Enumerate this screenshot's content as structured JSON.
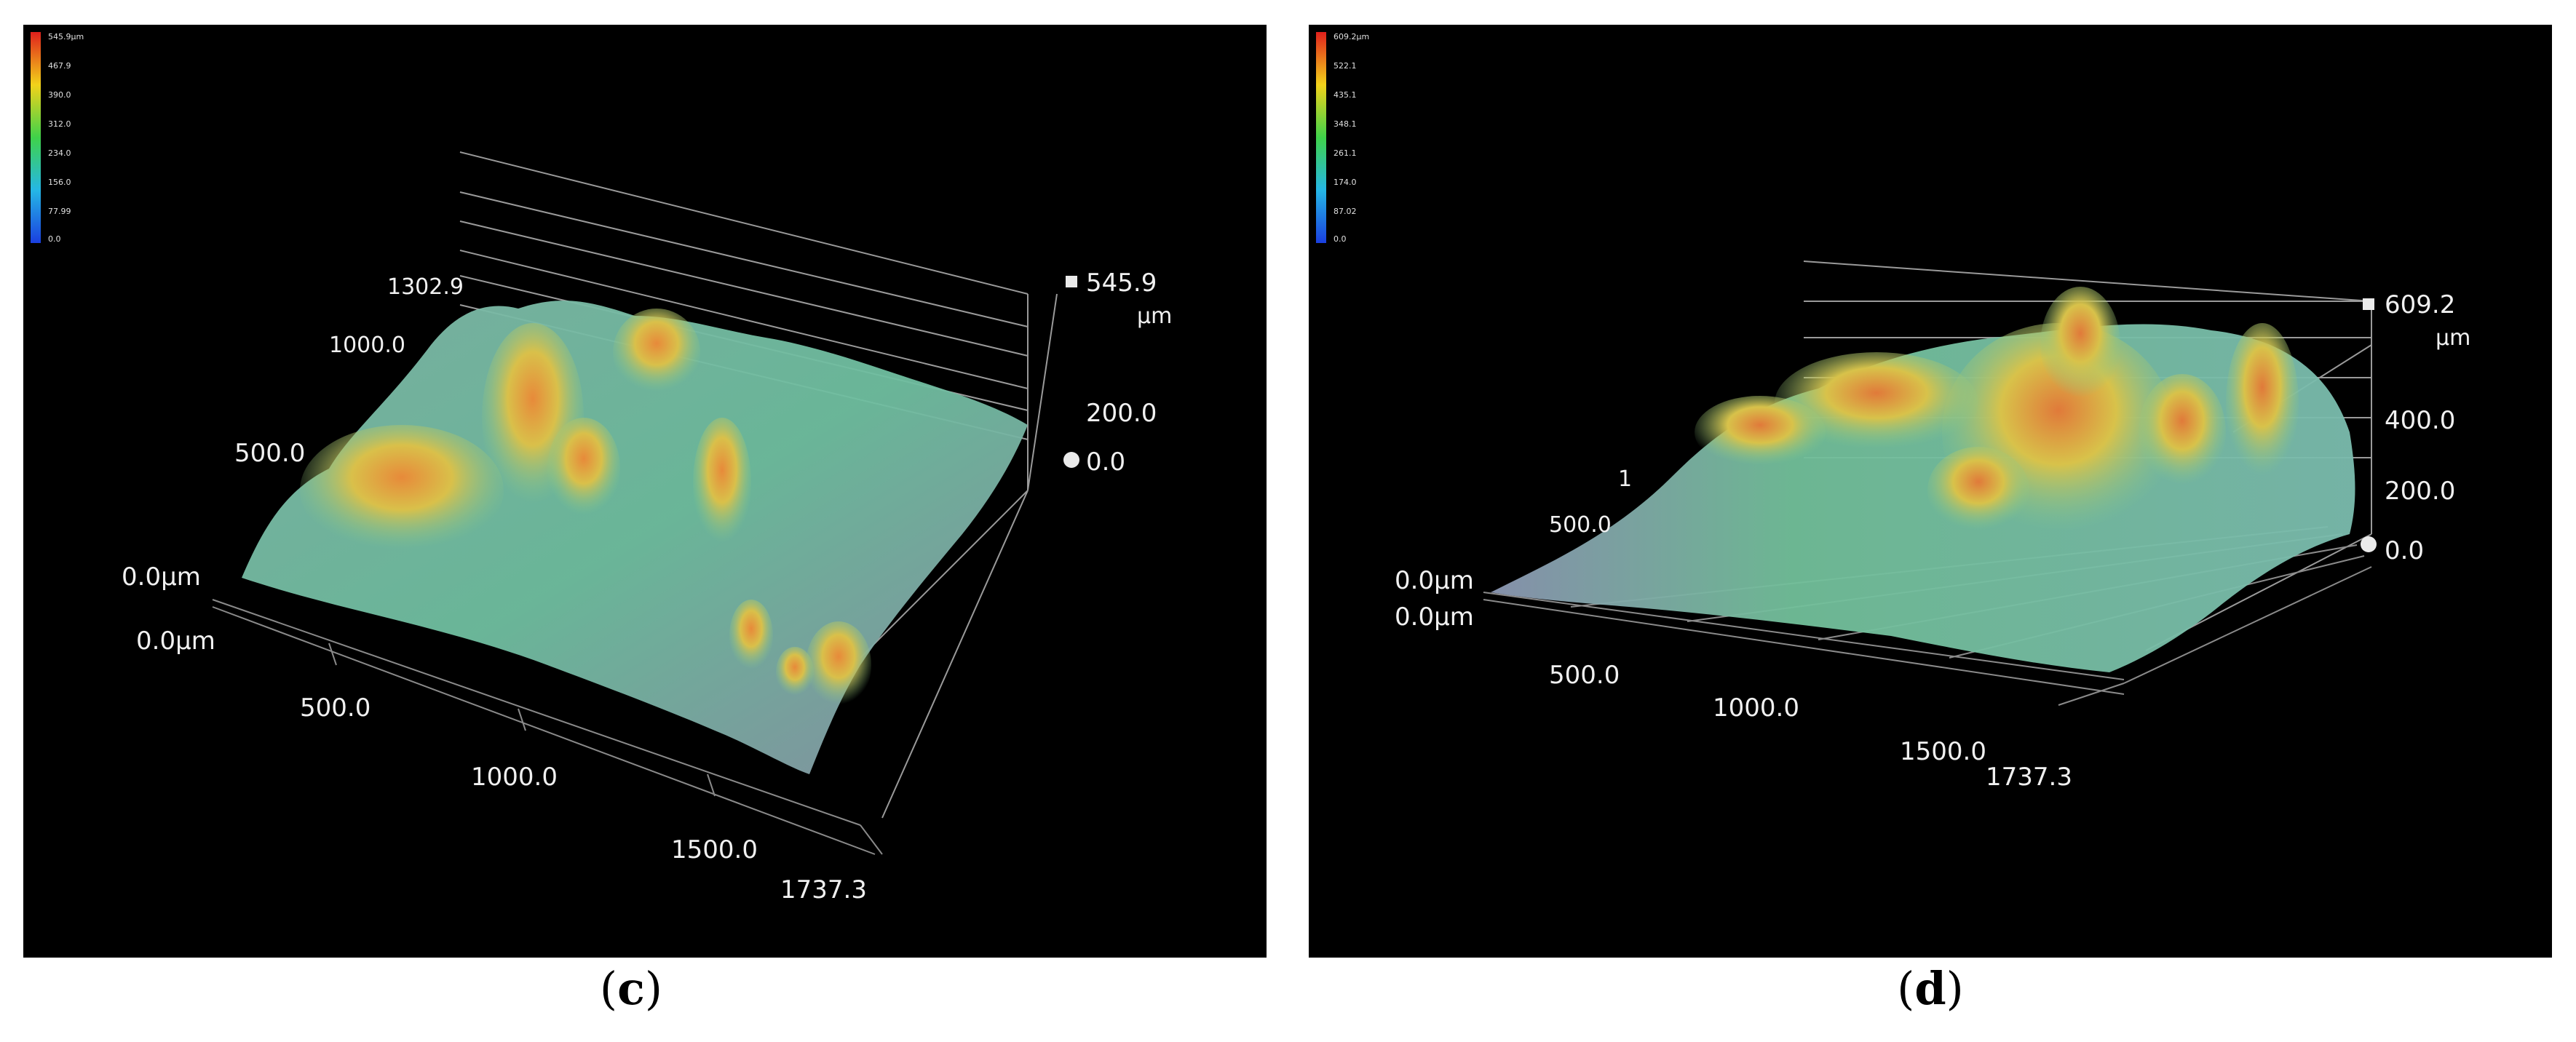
{
  "panels": [
    {
      "id": "c",
      "caption_open": "(",
      "caption_letter": "c",
      "caption_close": ")",
      "colorbar_labels": [
        "545.9µm",
        "467.9",
        "390.0",
        "312.0",
        "234.0",
        "156.0",
        "77.99",
        "0.0"
      ],
      "z_max": "545.9",
      "z_unit": "µm",
      "z_ticks": [
        "200.0",
        "0.0"
      ],
      "y_ticks": [
        "1302.9",
        "1000.0",
        "500.0",
        "0.0µm"
      ],
      "x_origin": "0.0µm",
      "x_ticks": [
        "500.0",
        "1000.0",
        "1500.0",
        "1737.3"
      ]
    },
    {
      "id": "d",
      "caption_open": "(",
      "caption_letter": "d",
      "caption_close": ")",
      "colorbar_labels": [
        "609.2µm",
        "522.1",
        "435.1",
        "348.1",
        "261.1",
        "174.0",
        "87.02",
        "0.0"
      ],
      "z_max": "609.2",
      "z_unit": "µm",
      "z_ticks": [
        "400.0",
        "200.0",
        "0.0"
      ],
      "y_ticks": [
        "1",
        "500.0",
        "0.0µm"
      ],
      "x_origin": "0.0µm",
      "x_ticks": [
        "500.0",
        "1000.0",
        "1500.0",
        "1737.3"
      ]
    }
  ]
}
